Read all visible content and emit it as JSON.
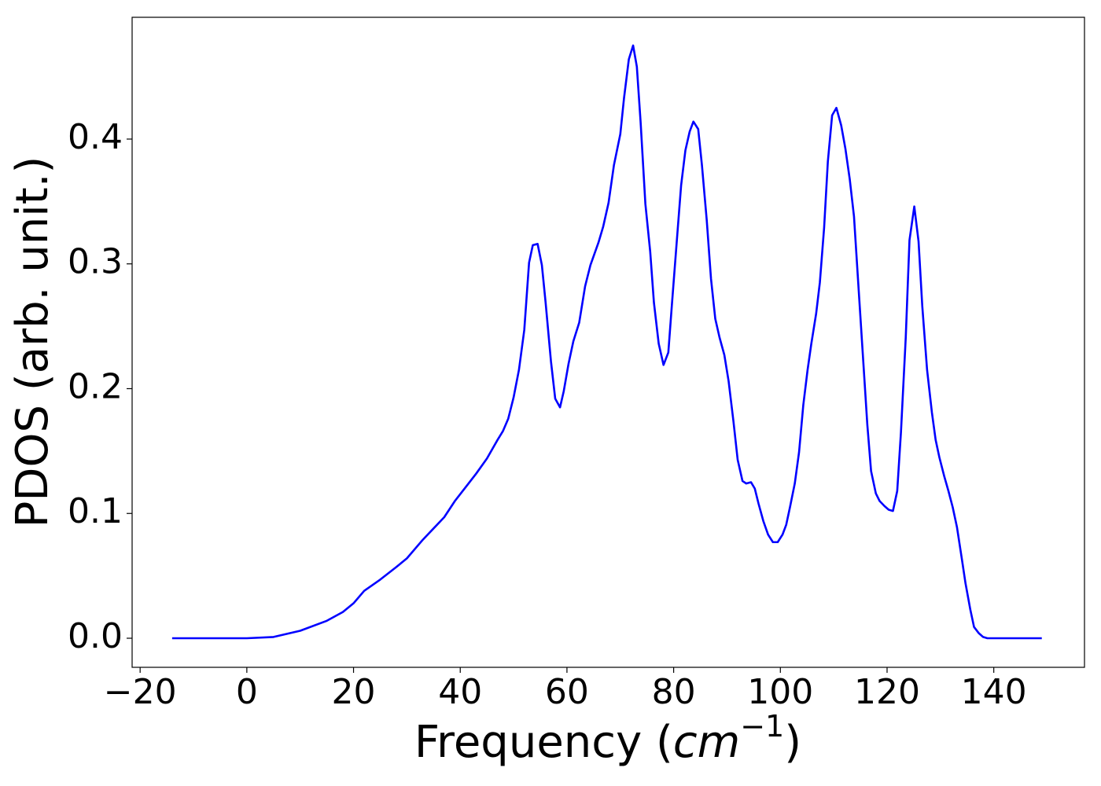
{
  "chart_data": {
    "type": "line",
    "x_label": [
      "Frequency (",
      "cm",
      "−1",
      ")"
    ],
    "y_label": "PDOS (arb. unit.)",
    "color": "#0000ff",
    "xlim": [
      -21.5,
      157
    ],
    "ylim": [
      -0.0233,
      0.4976
    ],
    "xticks": [
      {
        "value": -20,
        "label": "−20"
      },
      0,
      20,
      40,
      60,
      80,
      100,
      120,
      140
    ],
    "yticks": [
      {
        "value": 0,
        "label": "0.0"
      },
      0.1,
      0.2,
      0.3,
      0.4
    ],
    "x": [
      -14,
      0,
      5,
      10,
      15,
      18,
      20,
      22,
      25,
      28,
      30,
      33,
      35,
      37,
      39,
      41,
      43,
      45,
      47,
      48,
      49,
      50,
      51,
      52,
      52.9,
      53.6,
      54.5,
      55.3,
      56,
      57,
      57.8,
      58.7,
      59.4,
      60.3,
      61.2,
      62.3,
      63.4,
      64.4,
      65.9,
      66.8,
      67.8,
      68.8,
      70,
      70.7,
      71.6,
      72.4,
      73.1,
      73.8,
      74.7,
      75.6,
      76.3,
      77.2,
      78.1,
      79,
      79.7,
      80.6,
      81.4,
      82.2,
      83,
      83.7,
      84.6,
      85.3,
      86.2,
      87,
      87.8,
      88.6,
      89.5,
      90.3,
      91.2,
      92,
      92.9,
      93.6,
      94.5,
      95.2,
      95.9,
      96.8,
      97.7,
      98.6,
      99.5,
      100.4,
      101.1,
      101.8,
      102.7,
      103.5,
      104.3,
      105.1,
      105.8,
      106.7,
      107.4,
      108.2,
      108.9,
      109.7,
      110.5,
      111.4,
      112.2,
      113,
      113.8,
      114.5,
      115.4,
      116.3,
      117,
      117.9,
      118.6,
      119.5,
      120.3,
      121.1,
      121.9,
      122.6,
      123.5,
      124.2,
      125.1,
      125.9,
      126.6,
      127.5,
      128.4,
      129.1,
      129.8,
      130.7,
      131.5,
      132.3,
      133.1,
      134,
      134.7,
      135.6,
      136.3,
      137.2,
      138,
      138.8,
      149
    ],
    "values": [
      0,
      0,
      0.001,
      0.006,
      0.014,
      0.021,
      0.028,
      0.038,
      0.047,
      0.057,
      0.064,
      0.079,
      0.088,
      0.097,
      0.11,
      0.121,
      0.132,
      0.144,
      0.159,
      0.166,
      0.176,
      0.193,
      0.215,
      0.247,
      0.301,
      0.315,
      0.316,
      0.299,
      0.269,
      0.222,
      0.192,
      0.185,
      0.198,
      0.22,
      0.238,
      0.253,
      0.282,
      0.299,
      0.317,
      0.33,
      0.349,
      0.379,
      0.404,
      0.433,
      0.464,
      0.475,
      0.458,
      0.414,
      0.348,
      0.31,
      0.269,
      0.236,
      0.219,
      0.229,
      0.269,
      0.319,
      0.363,
      0.391,
      0.406,
      0.414,
      0.408,
      0.379,
      0.335,
      0.288,
      0.256,
      0.241,
      0.227,
      0.206,
      0.174,
      0.143,
      0.126,
      0.124,
      0.125,
      0.12,
      0.108,
      0.094,
      0.083,
      0.077,
      0.077,
      0.083,
      0.091,
      0.105,
      0.124,
      0.149,
      0.187,
      0.215,
      0.236,
      0.26,
      0.285,
      0.329,
      0.382,
      0.419,
      0.425,
      0.411,
      0.392,
      0.368,
      0.338,
      0.291,
      0.231,
      0.171,
      0.134,
      0.116,
      0.11,
      0.106,
      0.103,
      0.102,
      0.118,
      0.165,
      0.241,
      0.319,
      0.346,
      0.318,
      0.266,
      0.215,
      0.181,
      0.159,
      0.145,
      0.13,
      0.118,
      0.105,
      0.089,
      0.064,
      0.044,
      0.023,
      0.009,
      0.004,
      0.001,
      0,
      0
    ]
  }
}
